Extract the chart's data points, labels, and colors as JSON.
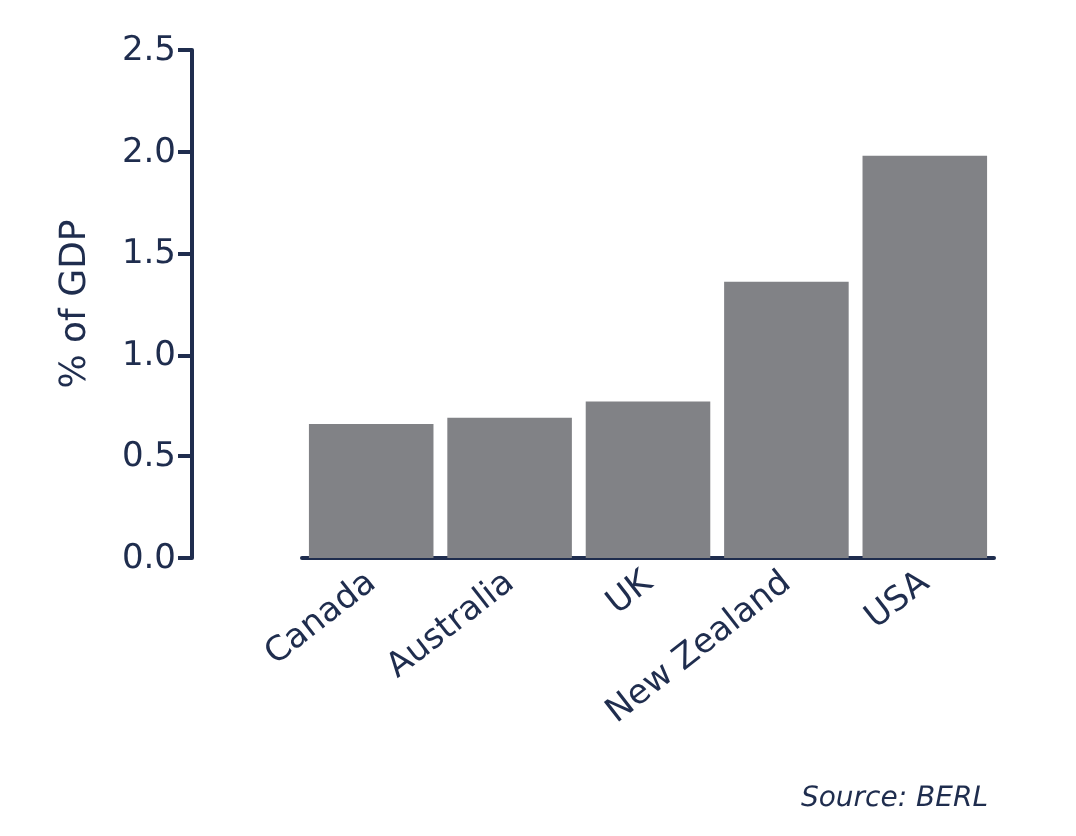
{
  "chart_data": {
    "type": "bar",
    "ylabel": "% of GDP",
    "categories": [
      "Canada",
      "Australia",
      "UK",
      "New Zealand",
      "USA"
    ],
    "values": [
      0.66,
      0.69,
      0.77,
      1.36,
      1.98
    ],
    "colors": [
      "#818286",
      "#818286",
      "#818286",
      "#818286",
      "#818286"
    ],
    "ylim": [
      0,
      2.5
    ],
    "yticks": [
      {
        "value": 0,
        "label": "0.0"
      },
      {
        "value": 0.5,
        "label": "0.5"
      },
      {
        "value": 1,
        "label": "1.0"
      },
      {
        "value": 1.5,
        "label": "1.5"
      },
      {
        "value": 2,
        "label": "2.0"
      },
      {
        "value": 2.5,
        "label": "2.5"
      }
    ],
    "grid": false,
    "annotations": [
      "Source: BERL"
    ]
  }
}
